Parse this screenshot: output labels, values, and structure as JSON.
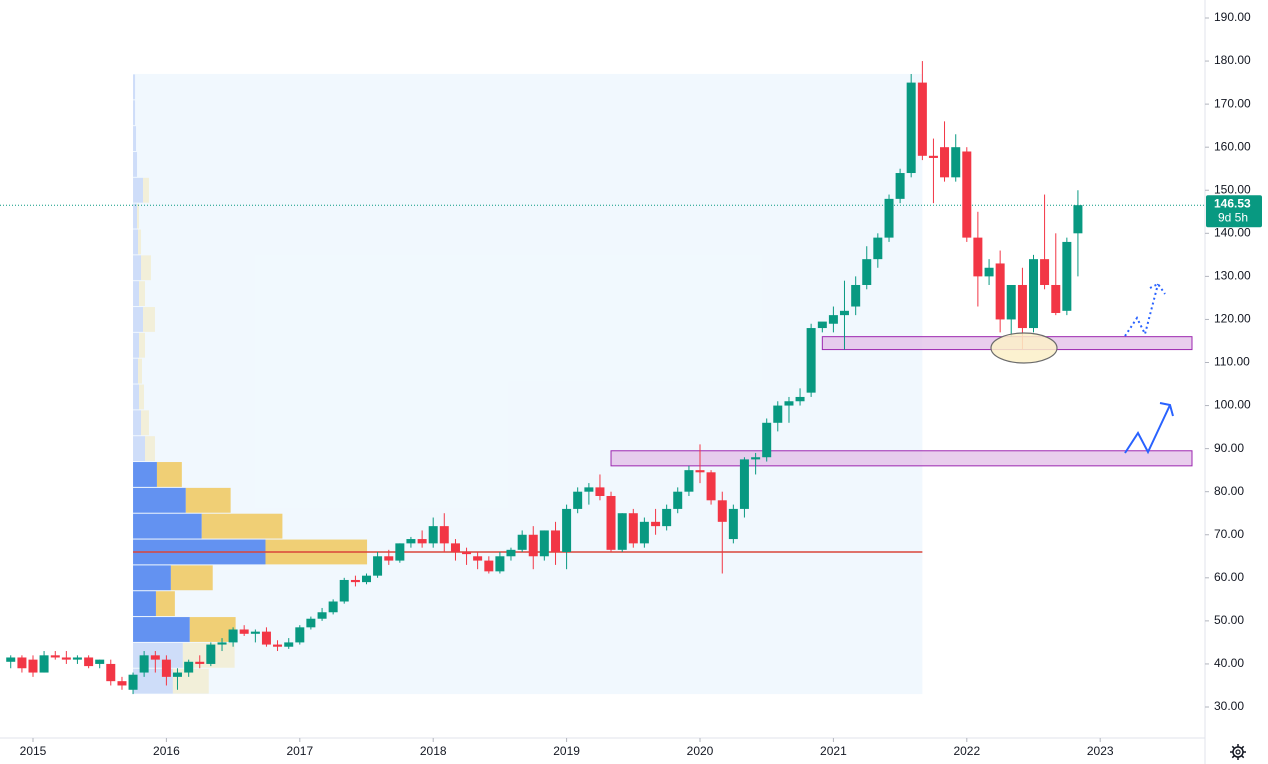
{
  "chart_data": {
    "type": "candlestick",
    "up_color": "#089981",
    "down_color": "#f23645",
    "x": [
      2014.833,
      2014.917,
      2015.0,
      2015.083,
      2015.167,
      2015.25,
      2015.333,
      2015.417,
      2015.5,
      2015.583,
      2015.667,
      2015.75,
      2015.833,
      2015.917,
      2016.0,
      2016.083,
      2016.167,
      2016.25,
      2016.333,
      2016.417,
      2016.5,
      2016.583,
      2016.667,
      2016.75,
      2016.833,
      2016.917,
      2017.0,
      2017.083,
      2017.167,
      2017.25,
      2017.333,
      2017.417,
      2017.5,
      2017.583,
      2017.667,
      2017.75,
      2017.833,
      2017.917,
      2018.0,
      2018.083,
      2018.167,
      2018.25,
      2018.333,
      2018.417,
      2018.5,
      2018.583,
      2018.667,
      2018.75,
      2018.833,
      2018.917,
      2019.0,
      2019.083,
      2019.167,
      2019.25,
      2019.333,
      2019.417,
      2019.5,
      2019.583,
      2019.667,
      2019.75,
      2019.833,
      2019.917,
      2020.0,
      2020.083,
      2020.167,
      2020.25,
      2020.333,
      2020.417,
      2020.5,
      2020.583,
      2020.667,
      2020.75,
      2020.833,
      2020.917,
      2021.0,
      2021.083,
      2021.167,
      2021.25,
      2021.333,
      2021.417,
      2021.5,
      2021.583,
      2021.667,
      2021.75,
      2021.833,
      2021.917,
      2022.0,
      2022.083,
      2022.167,
      2022.25,
      2022.333,
      2022.417,
      2022.5,
      2022.583,
      2022.667,
      2022.75,
      2022.833
    ],
    "open": [
      40.5,
      41.5,
      41,
      38,
      42,
      41.5,
      41,
      41.5,
      40,
      40,
      36,
      34,
      38,
      42,
      41,
      37,
      38,
      40.5,
      40,
      44.5,
      45,
      48,
      47,
      47.5,
      44.5,
      44,
      45,
      48.5,
      50.5,
      52,
      54.5,
      59.5,
      59,
      60.5,
      65,
      64,
      68,
      69,
      68,
      72,
      68,
      66,
      65,
      64,
      61.5,
      65,
      66.5,
      70,
      65,
      71,
      66,
      76,
      80,
      81,
      79,
      66.5,
      75,
      68,
      73,
      72,
      76,
      80,
      85,
      84.5,
      78,
      69,
      76,
      87.5,
      88,
      96,
      100,
      101,
      103,
      118,
      119,
      121,
      123,
      128,
      134,
      139,
      148,
      154,
      175,
      158,
      160,
      153,
      159,
      139,
      130,
      133,
      120,
      128,
      118,
      134,
      128,
      122,
      140
    ],
    "high": [
      42,
      42,
      42,
      43,
      43,
      43,
      42,
      42,
      41,
      41,
      37,
      38,
      43,
      43,
      42,
      39,
      41,
      42,
      45,
      46,
      48.5,
      49,
      48,
      48.5,
      45.5,
      46,
      49,
      51,
      53,
      55,
      60,
      60.5,
      61,
      66,
      66.5,
      68,
      69.5,
      71,
      74,
      75,
      69,
      67,
      66,
      65,
      66,
      67,
      71,
      72,
      71,
      73,
      77,
      81,
      82,
      84,
      80,
      75,
      76,
      74,
      76,
      77,
      81,
      86,
      91,
      85,
      80,
      77,
      88,
      89,
      97,
      101,
      102,
      104,
      119,
      119,
      123,
      129,
      130,
      137,
      140,
      149,
      155,
      177,
      180,
      162,
      166,
      163,
      160,
      145,
      134,
      136,
      128,
      132,
      135,
      149,
      140,
      139,
      150
    ],
    "low": [
      39,
      38,
      37,
      38,
      41,
      40,
      40,
      39,
      39,
      35,
      34,
      33,
      37,
      38,
      35,
      34,
      37,
      39,
      39.5,
      43,
      44,
      46.5,
      45,
      44,
      43,
      43.5,
      44.5,
      48,
      50,
      51.5,
      54,
      58,
      58.5,
      60,
      63,
      63.5,
      67,
      67,
      67,
      66,
      64,
      63,
      62,
      61,
      61,
      64,
      66,
      62,
      64,
      63,
      62,
      75,
      77,
      78,
      66,
      66,
      67,
      67,
      70,
      71,
      75,
      79,
      82,
      77,
      61,
      68,
      74,
      84,
      87,
      94,
      96,
      100,
      102,
      117,
      117,
      113,
      121,
      127,
      132,
      138,
      147,
      153,
      157,
      147,
      152,
      152,
      138,
      123,
      128,
      117,
      116,
      113,
      117,
      127,
      121,
      121,
      130
    ],
    "close": [
      41.5,
      39,
      38,
      42,
      41.5,
      41,
      41.5,
      39.5,
      41,
      36,
      35,
      37.5,
      42,
      41,
      37,
      38,
      40.5,
      40,
      44.5,
      45,
      48,
      47,
      47.5,
      44.5,
      44,
      45,
      48.5,
      50.5,
      52,
      54.5,
      59.5,
      59,
      60.5,
      65,
      64,
      68,
      69,
      68,
      72,
      68,
      66,
      65.5,
      64,
      61.5,
      65,
      66.5,
      70,
      65,
      71,
      66,
      76,
      80,
      81,
      79,
      66.5,
      75,
      68,
      73,
      72,
      76,
      80,
      85,
      84.5,
      78,
      73,
      76,
      87.5,
      88,
      96,
      100,
      101,
      102,
      118,
      119.5,
      121,
      122,
      128,
      134,
      139,
      148,
      154,
      175,
      158,
      157.5,
      153,
      160,
      139,
      130,
      132,
      120,
      128,
      118,
      134,
      128,
      121.5,
      138,
      146.53
    ],
    "ylim": [
      30,
      190
    ],
    "yticks": [
      {
        "value": 30,
        "label": "30.00"
      },
      {
        "value": 40,
        "label": "40.00"
      },
      {
        "value": 50,
        "label": "50.00"
      },
      {
        "value": 60,
        "label": "60.00"
      },
      {
        "value": 70,
        "label": "70.00"
      },
      {
        "value": 80,
        "label": "80.00"
      },
      {
        "value": 90,
        "label": "90.00"
      },
      {
        "value": 100,
        "label": "100.00"
      },
      {
        "value": 110,
        "label": "110.00"
      },
      {
        "value": 120,
        "label": "120.00"
      },
      {
        "value": 130,
        "label": "130.00"
      },
      {
        "value": 140,
        "label": "140.00"
      },
      {
        "value": 150,
        "label": "150.00"
      },
      {
        "value": 160,
        "label": "160.00"
      },
      {
        "value": 170,
        "label": "170.00"
      },
      {
        "value": 180,
        "label": "180.00"
      },
      {
        "value": 190,
        "label": "190.00"
      }
    ],
    "xticks": [
      2015,
      2016,
      2017,
      2018,
      2019,
      2020,
      2021,
      2022,
      2023
    ],
    "grid": false,
    "last_price": 146.53,
    "countdown": "9d 5h",
    "profile": {
      "start": 2015.75,
      "end": 2021.667,
      "poc": 66,
      "value_area": [
        45,
        87
      ],
      "bins": [
        33,
        39,
        45,
        51,
        57,
        63,
        69,
        75,
        81,
        87,
        93,
        99,
        105,
        111,
        117,
        123,
        129,
        135,
        141,
        147,
        153,
        159,
        165,
        171,
        177
      ],
      "up": [
        40,
        50,
        57,
        23,
        38,
        133,
        69,
        53,
        24,
        12,
        8,
        6,
        5,
        6,
        10,
        6,
        8,
        5,
        4,
        10,
        4,
        3,
        2,
        2
      ],
      "down": [
        36,
        52,
        46,
        19,
        42,
        102,
        81,
        45,
        25,
        10,
        8,
        5,
        4,
        6,
        12,
        6,
        10,
        3,
        2,
        6,
        0,
        0,
        0,
        0
      ]
    },
    "zones": [
      {
        "low": 86,
        "high": 89.5,
        "start": 2019.333
      },
      {
        "low": 113,
        "high": 116,
        "start": 2020.917
      }
    ]
  }
}
